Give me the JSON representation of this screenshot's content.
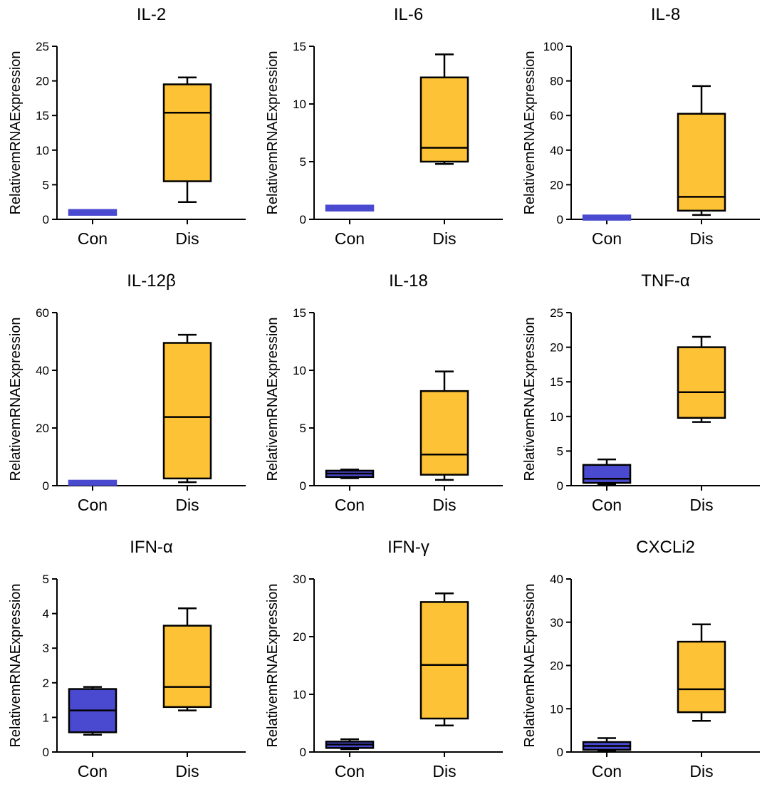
{
  "figure": {
    "colors": {
      "con": "#4a4ad0",
      "dis": "#fdc236",
      "stroke": "#000000"
    }
  },
  "chart_data": [
    {
      "type": "box",
      "title": "IL-2",
      "ylabel": "RelativemRNAExpression",
      "ylim": [
        0,
        25
      ],
      "yticks": [
        "0",
        "5",
        "10",
        "15",
        "20",
        "25"
      ],
      "categories": [
        "Con",
        "Dis"
      ],
      "boxes": [
        {
          "min": 0.8,
          "q1": 0.8,
          "median": 1.0,
          "q3": 1.2,
          "max": 1.3
        },
        {
          "min": 2.5,
          "q1": 5.5,
          "median": 15.4,
          "q3": 19.5,
          "max": 20.5
        }
      ]
    },
    {
      "type": "box",
      "title": "IL-6",
      "ylabel": "RelativemRNAExpression",
      "ylim": [
        0,
        15
      ],
      "yticks": [
        "0",
        "5",
        "10",
        "15"
      ],
      "categories": [
        "Con",
        "Dis"
      ],
      "boxes": [
        {
          "min": 0.8,
          "q1": 0.85,
          "median": 1.0,
          "q3": 1.1,
          "max": 1.15
        },
        {
          "min": 4.8,
          "q1": 5.0,
          "median": 6.2,
          "q3": 12.3,
          "max": 14.3
        }
      ]
    },
    {
      "type": "box",
      "title": "IL-8",
      "ylabel": "RelativemRNAExpression",
      "ylim": [
        0,
        100
      ],
      "yticks": [
        "0",
        "20",
        "40",
        "60",
        "80",
        "100"
      ],
      "categories": [
        "Con",
        "Dis"
      ],
      "boxes": [
        {
          "min": 0.6,
          "q1": 0.7,
          "median": 1.0,
          "q3": 1.3,
          "max": 1.4
        },
        {
          "min": 2.5,
          "q1": 5.0,
          "median": 13.0,
          "q3": 61.0,
          "max": 77.0
        }
      ]
    },
    {
      "type": "box",
      "title": "IL-12β",
      "ylabel": "RelativemRNAExpression",
      "ylim": [
        0,
        60
      ],
      "yticks": [
        "0",
        "20",
        "40",
        "60"
      ],
      "categories": [
        "Con",
        "Dis"
      ],
      "boxes": [
        {
          "min": 0.6,
          "q1": 0.7,
          "median": 1.0,
          "q3": 1.3,
          "max": 1.4
        },
        {
          "min": 1.2,
          "q1": 2.5,
          "median": 23.8,
          "q3": 49.5,
          "max": 52.3
        }
      ]
    },
    {
      "type": "box",
      "title": "IL-18",
      "ylabel": "RelativemRNAExpression",
      "ylim": [
        0,
        15
      ],
      "yticks": [
        "0",
        "5",
        "10",
        "15"
      ],
      "categories": [
        "Con",
        "Dis"
      ],
      "boxes": [
        {
          "min": 0.65,
          "q1": 0.75,
          "median": 1.05,
          "q3": 1.3,
          "max": 1.4
        },
        {
          "min": 0.5,
          "q1": 0.95,
          "median": 2.7,
          "q3": 8.2,
          "max": 9.9
        }
      ]
    },
    {
      "type": "box",
      "title": "TNF-α",
      "ylabel": "RelativemRNAExpression",
      "ylim": [
        0,
        25
      ],
      "yticks": [
        "0",
        "5",
        "10",
        "15",
        "20",
        "25"
      ],
      "categories": [
        "Con",
        "Dis"
      ],
      "boxes": [
        {
          "min": 0.2,
          "q1": 0.4,
          "median": 1.0,
          "q3": 3.0,
          "max": 3.8
        },
        {
          "min": 9.2,
          "q1": 9.8,
          "median": 13.5,
          "q3": 20.0,
          "max": 21.5
        }
      ]
    },
    {
      "type": "box",
      "title": "IFN-α",
      "ylabel": "RelativemRNAExpression",
      "ylim": [
        0,
        5
      ],
      "yticks": [
        "0",
        "1",
        "2",
        "3",
        "4",
        "5"
      ],
      "categories": [
        "Con",
        "Dis"
      ],
      "boxes": [
        {
          "min": 0.5,
          "q1": 0.57,
          "median": 1.2,
          "q3": 1.82,
          "max": 1.88
        },
        {
          "min": 1.2,
          "q1": 1.3,
          "median": 1.88,
          "q3": 3.65,
          "max": 4.15
        }
      ]
    },
    {
      "type": "box",
      "title": "IFN-γ",
      "ylabel": "RelativemRNAExpression",
      "ylim": [
        0,
        30
      ],
      "yticks": [
        "0",
        "10",
        "20",
        "30"
      ],
      "categories": [
        "Con",
        "Dis"
      ],
      "boxes": [
        {
          "min": 0.5,
          "q1": 0.7,
          "median": 1.3,
          "q3": 1.8,
          "max": 2.2
        },
        {
          "min": 4.6,
          "q1": 5.8,
          "median": 15.1,
          "q3": 26.0,
          "max": 27.5
        }
      ]
    },
    {
      "type": "box",
      "title": "CXCLi2",
      "ylabel": "RelativemRNAExpression",
      "ylim": [
        0,
        40
      ],
      "yticks": [
        "0",
        "10",
        "20",
        "30",
        "40"
      ],
      "categories": [
        "Con",
        "Dis"
      ],
      "boxes": [
        {
          "min": 0.2,
          "q1": 0.5,
          "median": 1.4,
          "q3": 2.3,
          "max": 3.2
        },
        {
          "min": 7.2,
          "q1": 9.2,
          "median": 14.5,
          "q3": 25.5,
          "max": 29.5
        }
      ]
    }
  ]
}
